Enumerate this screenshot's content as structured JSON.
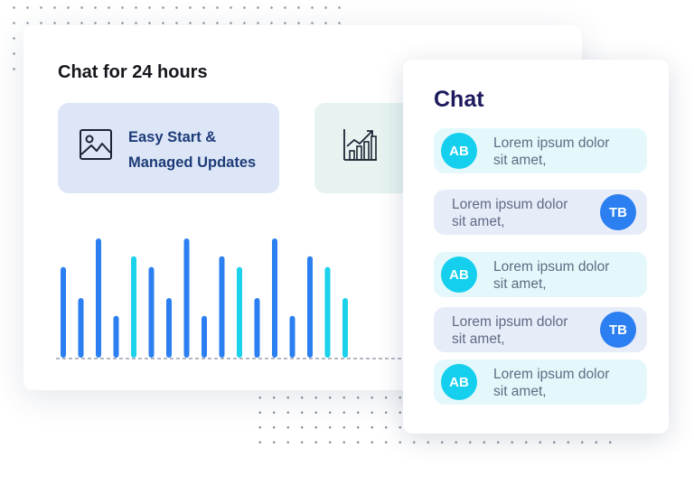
{
  "main": {
    "title": "Chat for 24 hours",
    "features": [
      {
        "icon": "image-icon",
        "lines": [
          "Easy Start &",
          "Managed Updates"
        ]
      },
      {
        "icon": "growth-chart-icon",
        "lines": []
      }
    ]
  },
  "chat": {
    "title": "Chat",
    "messages": [
      {
        "side": "in",
        "avatar": "AB",
        "line1": "Lorem ipsum dolor",
        "line2": "sit amet,"
      },
      {
        "side": "out",
        "avatar": "TB",
        "line1": "Lorem ipsum dolor",
        "line2": "sit amet,"
      },
      {
        "side": "in",
        "avatar": "AB",
        "line1": "Lorem ipsum dolor",
        "line2": "sit amet,"
      },
      {
        "side": "out",
        "avatar": "TB",
        "line1": "Lorem ipsum dolor",
        "line2": "sit amet,"
      },
      {
        "side": "in",
        "avatar": "AB",
        "line1": "Lorem ipsum dolor",
        "line2": "sit amet,"
      }
    ]
  },
  "chart_data": {
    "type": "bar",
    "values": [
      76,
      50,
      100,
      35,
      85,
      76,
      50,
      100,
      35,
      85,
      76,
      50,
      100,
      35,
      85,
      76,
      50
    ],
    "colors": [
      "#2b7ff0",
      "#2b7ff0",
      "#2b7ff0",
      "#2b7ff0",
      "#1bd2ea",
      "#2b7ff0",
      "#2b7ff0",
      "#2b7ff0",
      "#2b7ff0",
      "#2b7ff0",
      "#1bd2ea",
      "#2b7ff0",
      "#2b7ff0",
      "#2b7ff0",
      "#2b7ff0",
      "#1bd2ea",
      "#1bd2ea"
    ],
    "ylim": [
      0,
      100
    ]
  },
  "colors": {
    "accent_blue": "#2b7ff0",
    "accent_cyan": "#15cfee",
    "chat_title": "#1d1b5e",
    "feature_text": "#1e3b78"
  }
}
